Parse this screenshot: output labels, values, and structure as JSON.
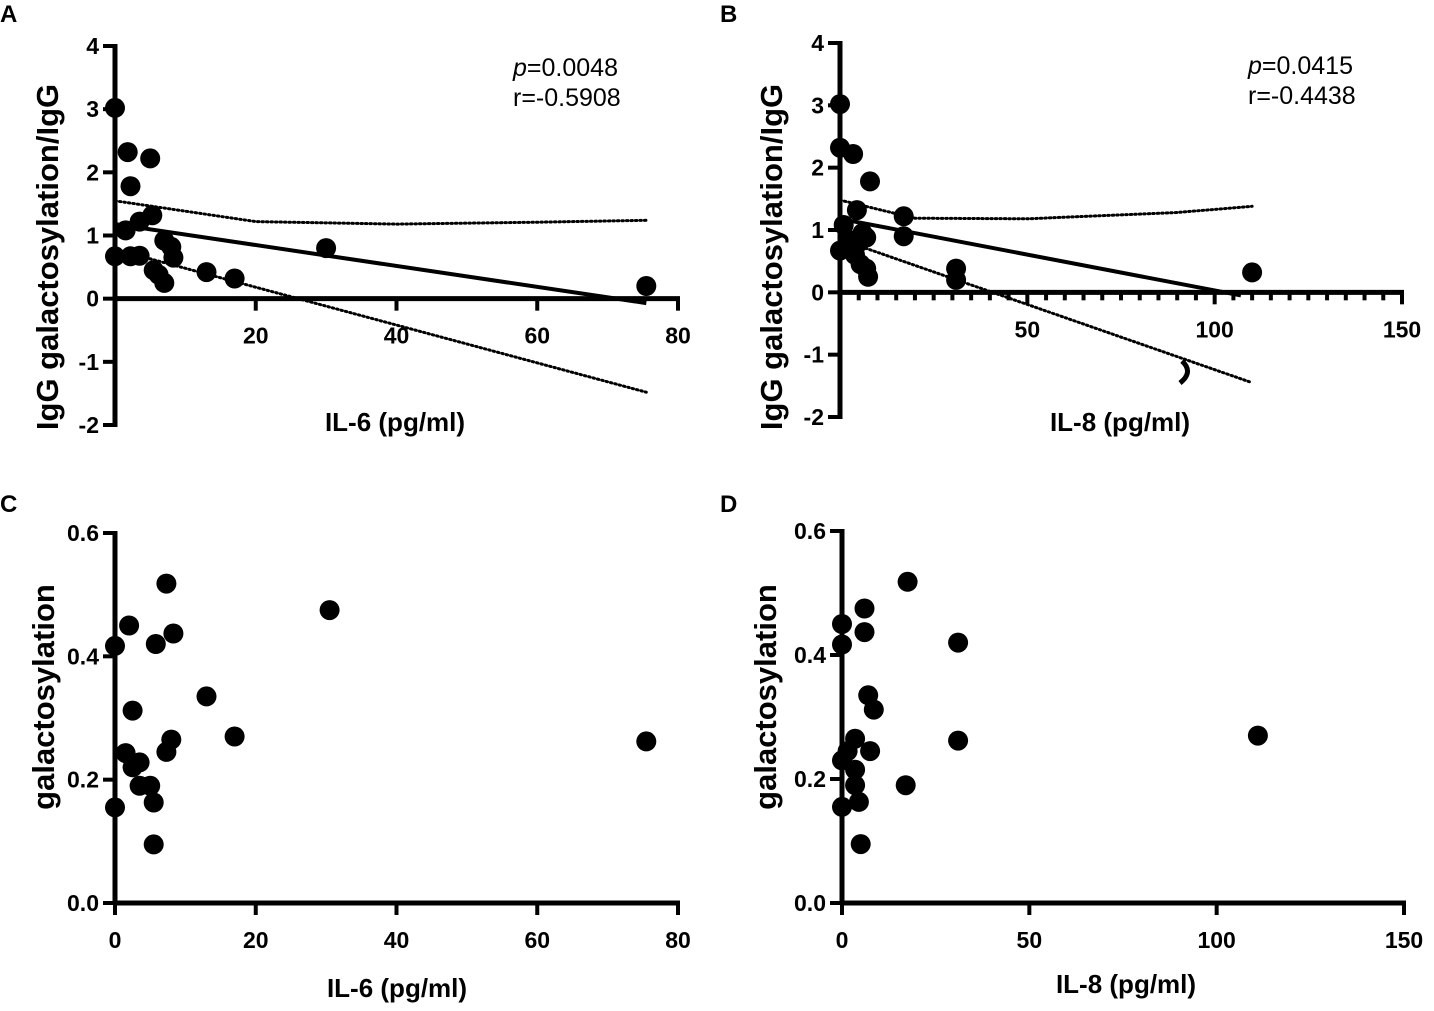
{
  "chart_data": [
    {
      "panel": "A",
      "type": "scatter",
      "xlabel": "IL-6 (pg/ml)",
      "ylabel": "IgG galactosylation/IgG",
      "xlim": [
        0,
        80
      ],
      "ylim": [
        -2,
        4
      ],
      "xticks": [
        20,
        40,
        60,
        80
      ],
      "yticks": [
        -2,
        -1,
        0,
        1,
        2,
        3,
        4
      ],
      "minor_xticks": [],
      "stats": {
        "p_label": "p",
        "p_value": "=0.0048",
        "r": "r=-0.5908"
      },
      "points": [
        [
          0,
          3.02
        ],
        [
          0,
          0.67
        ],
        [
          1.8,
          2.32
        ],
        [
          2.2,
          1.78
        ],
        [
          1.5,
          1.08
        ],
        [
          2.2,
          0.67
        ],
        [
          3.5,
          1.22
        ],
        [
          3.5,
          0.68
        ],
        [
          5,
          2.22
        ],
        [
          5.3,
          1.32
        ],
        [
          5.5,
          0.45
        ],
        [
          6.2,
          0.38
        ],
        [
          7,
          0.92
        ],
        [
          7,
          0.25
        ],
        [
          8,
          0.82
        ],
        [
          8.3,
          0.65
        ],
        [
          13,
          0.42
        ],
        [
          17,
          0.32
        ],
        [
          30,
          0.8
        ],
        [
          75.5,
          0.2
        ]
      ],
      "regression": {
        "x": [
          0,
          75.5
        ],
        "y": [
          1.18,
          -0.07
        ]
      },
      "ci_upper": [
        [
          0,
          1.55
        ],
        [
          20,
          1.22
        ],
        [
          40,
          1.18
        ],
        [
          60,
          1.21
        ],
        [
          75.5,
          1.24
        ]
      ],
      "ci_lower": [
        [
          0,
          0.78
        ],
        [
          75.5,
          -1.48
        ]
      ]
    },
    {
      "panel": "B",
      "type": "scatter",
      "xlabel": "IL-8 (pg/ml)",
      "ylabel": "IgG galactosylation/IgG",
      "xlim": [
        0,
        150
      ],
      "ylim": [
        -2,
        4
      ],
      "xticks": [
        50,
        100,
        150
      ],
      "yticks": [
        -2,
        -1,
        0,
        1,
        2,
        3,
        4
      ],
      "minor_xticks": [
        5,
        10,
        15,
        20,
        25,
        30,
        35,
        40,
        45,
        55,
        60,
        65,
        70,
        75,
        80,
        85,
        90,
        95,
        105,
        110,
        115,
        120,
        125,
        130,
        135,
        140,
        145
      ],
      "stats": {
        "p_label": "p",
        "p_value": "=0.0415",
        "r": "r=-0.4438"
      },
      "points": [
        [
          0,
          3.02
        ],
        [
          0,
          2.32
        ],
        [
          3.5,
          2.22
        ],
        [
          8,
          1.78
        ],
        [
          4.5,
          1.32
        ],
        [
          17,
          1.22
        ],
        [
          17,
          0.9
        ],
        [
          0,
          0.67
        ],
        [
          1,
          1.08
        ],
        [
          2,
          0.85
        ],
        [
          3,
          0.7
        ],
        [
          4,
          0.6
        ],
        [
          5,
          0.8
        ],
        [
          6,
          0.95
        ],
        [
          7,
          0.88
        ],
        [
          5.5,
          0.45
        ],
        [
          7,
          0.38
        ],
        [
          7.5,
          0.25
        ],
        [
          31,
          0.38
        ],
        [
          31,
          0.2
        ],
        [
          110,
          0.32
        ]
      ],
      "regression": {
        "x": [
          0,
          107
        ],
        "y": [
          1.18,
          -0.05
        ]
      },
      "ci_upper": [
        [
          0,
          1.48
        ],
        [
          20,
          1.19
        ],
        [
          50,
          1.18
        ],
        [
          90,
          1.28
        ],
        [
          110,
          1.38
        ]
      ],
      "ci_lower": [
        [
          0,
          0.85
        ],
        [
          110,
          -1.45
        ]
      ]
    },
    {
      "panel": "C",
      "type": "scatter",
      "xlabel": "IL-6 (pg/ml)",
      "ylabel": "galactosylation",
      "xlim": [
        0,
        80
      ],
      "ylim": [
        0,
        0.6
      ],
      "xticks": [
        0,
        20,
        40,
        60,
        80
      ],
      "yticks": [
        0,
        0.2,
        0.4,
        0.6
      ],
      "ytick_labels": [
        "0.0",
        "0.2",
        "0.4",
        "0.6"
      ],
      "minor_xticks": [],
      "points": [
        [
          0,
          0.417
        ],
        [
          0,
          0.155
        ],
        [
          2,
          0.45
        ],
        [
          1.5,
          0.243
        ],
        [
          2.5,
          0.312
        ],
        [
          2.5,
          0.22
        ],
        [
          3.5,
          0.228
        ],
        [
          3.5,
          0.19
        ],
        [
          5,
          0.19
        ],
        [
          5.5,
          0.163
        ],
        [
          5.5,
          0.095
        ],
        [
          5.8,
          0.42
        ],
        [
          7.3,
          0.518
        ],
        [
          7.3,
          0.245
        ],
        [
          8,
          0.265
        ],
        [
          8.3,
          0.437
        ],
        [
          13,
          0.335
        ],
        [
          17,
          0.27
        ],
        [
          30.5,
          0.475
        ],
        [
          75.5,
          0.262
        ]
      ]
    },
    {
      "panel": "D",
      "type": "scatter",
      "xlabel": "IL-8 (pg/ml)",
      "ylabel": "galactosylation",
      "xlim": [
        0,
        150
      ],
      "ylim": [
        0,
        0.6
      ],
      "xticks": [
        0,
        50,
        100,
        150
      ],
      "yticks": [
        0,
        0.2,
        0.4,
        0.6
      ],
      "ytick_labels": [
        "0.0",
        "0.2",
        "0.4",
        "0.6"
      ],
      "minor_xticks": [],
      "points": [
        [
          0,
          0.45
        ],
        [
          0,
          0.417
        ],
        [
          0,
          0.23
        ],
        [
          0,
          0.155
        ],
        [
          1.5,
          0.245
        ],
        [
          3.5,
          0.265
        ],
        [
          3.5,
          0.215
        ],
        [
          3.5,
          0.19
        ],
        [
          4.5,
          0.163
        ],
        [
          5,
          0.095
        ],
        [
          6,
          0.475
        ],
        [
          6,
          0.437
        ],
        [
          7,
          0.335
        ],
        [
          7.5,
          0.245
        ],
        [
          8.5,
          0.312
        ],
        [
          17.5,
          0.518
        ],
        [
          17,
          0.19
        ],
        [
          31,
          0.42
        ],
        [
          31,
          0.262
        ],
        [
          111,
          0.27
        ]
      ]
    }
  ]
}
